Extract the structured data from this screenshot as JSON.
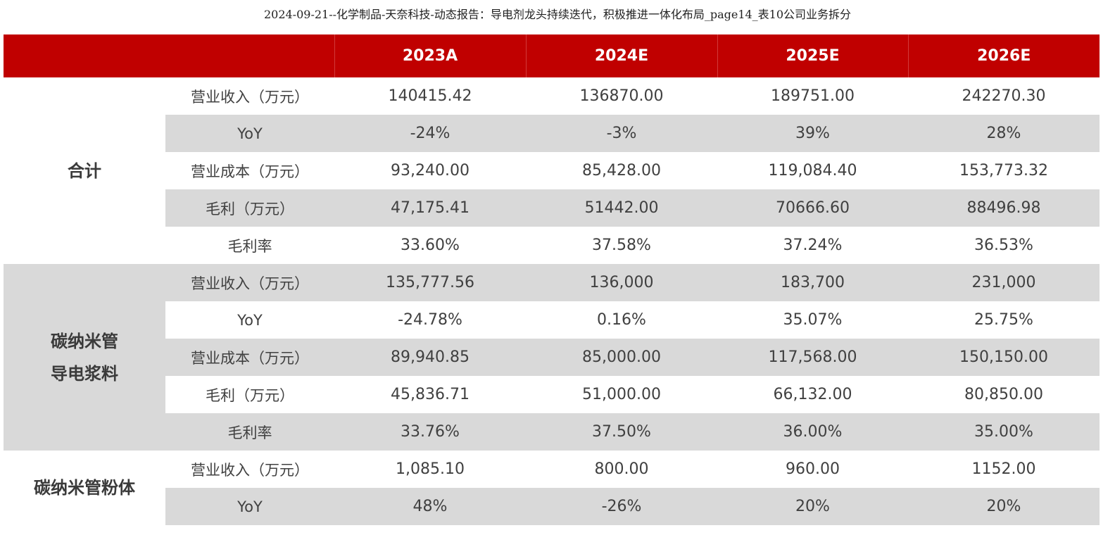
{
  "document": {
    "title": "2024-09-21--化学制品-天奈科技-动态报告：导电剂龙头持续迭代，积极推进一体化布局_page14_表10公司业务拆分"
  },
  "table": {
    "header": {
      "corner": "",
      "columns": [
        "2023A",
        "2024E",
        "2025E",
        "2026E"
      ]
    },
    "groups": [
      {
        "name_lines": [
          "合计"
        ],
        "rows": [
          {
            "metric": "营业收入（万元）",
            "values": [
              "140415.42",
              "136870.00",
              "189751.00",
              "242270.30"
            ]
          },
          {
            "metric": "YoY",
            "values": [
              "-24%",
              "-3%",
              "39%",
              "28%"
            ]
          },
          {
            "metric": "营业成本（万元）",
            "values": [
              "93,240.00",
              "85,428.00",
              "119,084.40",
              "153,773.32"
            ]
          },
          {
            "metric": "毛利（万元）",
            "values": [
              "47,175.41",
              "51442.00",
              "70666.60",
              "88496.98"
            ]
          },
          {
            "metric": "毛利率",
            "values": [
              "33.60%",
              "37.58%",
              "37.24%",
              "36.53%"
            ]
          }
        ]
      },
      {
        "name_lines": [
          "碳纳米管",
          "导电浆料"
        ],
        "rows": [
          {
            "metric": "营业收入（万元）",
            "values": [
              "135,777.56",
              "136,000",
              "183,700",
              "231,000"
            ]
          },
          {
            "metric": "YoY",
            "values": [
              "-24.78%",
              "0.16%",
              "35.07%",
              "25.75%"
            ]
          },
          {
            "metric": "营业成本（万元）",
            "values": [
              "89,940.85",
              "85,000.00",
              "117,568.00",
              "150,150.00"
            ]
          },
          {
            "metric": "毛利（万元）",
            "values": [
              "45,836.71",
              "51,000.00",
              "66,132.00",
              "80,850.00"
            ]
          },
          {
            "metric": "毛利率",
            "values": [
              "33.76%",
              "37.50%",
              "36.00%",
              "35.00%"
            ]
          }
        ]
      },
      {
        "name_lines": [
          "碳纳米管粉体"
        ],
        "rows": [
          {
            "metric": "营业收入（万元）",
            "values": [
              "1,085.10",
              "800.00",
              "960.00",
              "1152.00"
            ]
          },
          {
            "metric": "YoY",
            "values": [
              "48%",
              "-26%",
              "20%",
              "20%"
            ]
          }
        ]
      }
    ]
  }
}
